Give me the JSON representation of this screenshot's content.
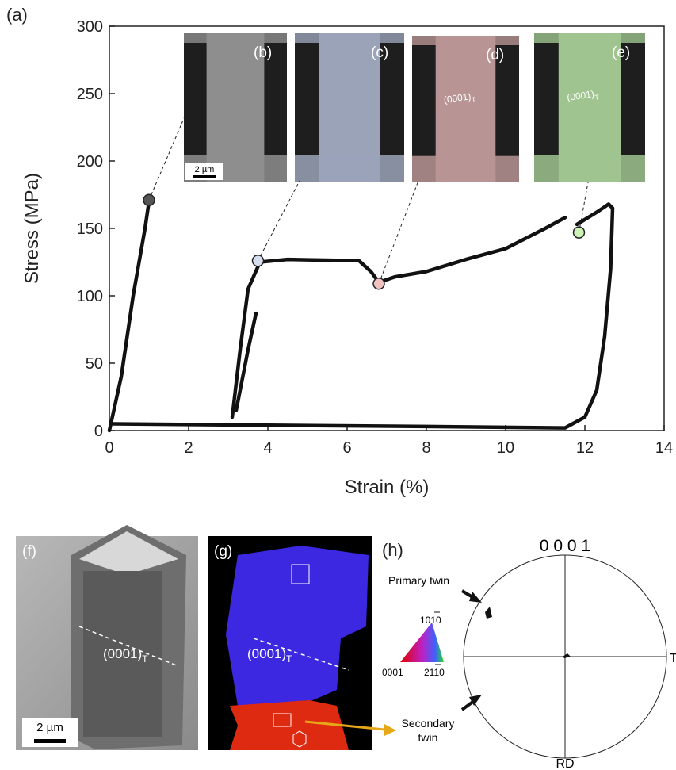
{
  "panel_label": "(a)",
  "chart_data": {
    "type": "line",
    "xlabel": "Strain (%)",
    "ylabel": "Stress (MPa)",
    "xlim": [
      0,
      14
    ],
    "ylim": [
      0,
      300
    ],
    "xticks": [
      0,
      2,
      4,
      6,
      8,
      10,
      12,
      14
    ],
    "yticks": [
      0,
      50,
      100,
      150,
      200,
      250,
      300
    ],
    "series": [
      {
        "color": "#111111",
        "x": [
          0,
          0.3,
          0.6,
          0.9,
          1.0,
          null,
          3.1,
          3.3,
          3.5,
          3.8,
          4.5,
          6.3,
          6.6,
          6.8,
          7.2,
          8,
          9,
          10,
          11,
          11.5,
          null,
          11.8,
          12.3,
          12.6,
          12.7,
          12.65,
          12.5,
          12.3,
          12.0,
          11.5,
          8,
          4,
          0.1,
          null,
          3.2,
          3.5,
          3.7
        ],
        "values": [
          0,
          40,
          100,
          150,
          170,
          null,
          10,
          60,
          105,
          125,
          127,
          126,
          118,
          110,
          114,
          118,
          127,
          135,
          150,
          158,
          null,
          153,
          162,
          168,
          165,
          120,
          70,
          30,
          10,
          2,
          3,
          4,
          5,
          null,
          15,
          60,
          87
        ]
      }
    ],
    "markers": {
      "x": [
        1.0,
        3.75,
        6.8,
        11.85
      ],
      "values": [
        171,
        126,
        109,
        147
      ],
      "colors": [
        "#555555",
        "#d4deef",
        "#f2c2c0",
        "#cdf2b6"
      ]
    },
    "insets": [
      {
        "label": "(b)",
        "scale": "2 µm"
      },
      {
        "label": "(c)"
      },
      {
        "label": "(d)",
        "annotation": {
          "text": "(0001)",
          "sub": "T"
        }
      },
      {
        "label": "(e)",
        "annotation": {
          "text": "(0001)",
          "sub": "T"
        }
      }
    ]
  },
  "panels": {
    "f": {
      "label": "(f)",
      "annotation": {
        "text": "(0001)",
        "sub": "T"
      },
      "scale": "2 µm"
    },
    "g": {
      "label": "(g)",
      "annotation": {
        "text": "(0001)",
        "sub": "T"
      }
    },
    "h": {
      "label": "(h)",
      "pole": "0 0 0 1",
      "primary": "Primary twin",
      "secondary": [
        "Secondary",
        "twin"
      ],
      "td": "TD",
      "rd": "RD",
      "key": [
        "1010",
        "2110",
        "0001"
      ]
    }
  }
}
